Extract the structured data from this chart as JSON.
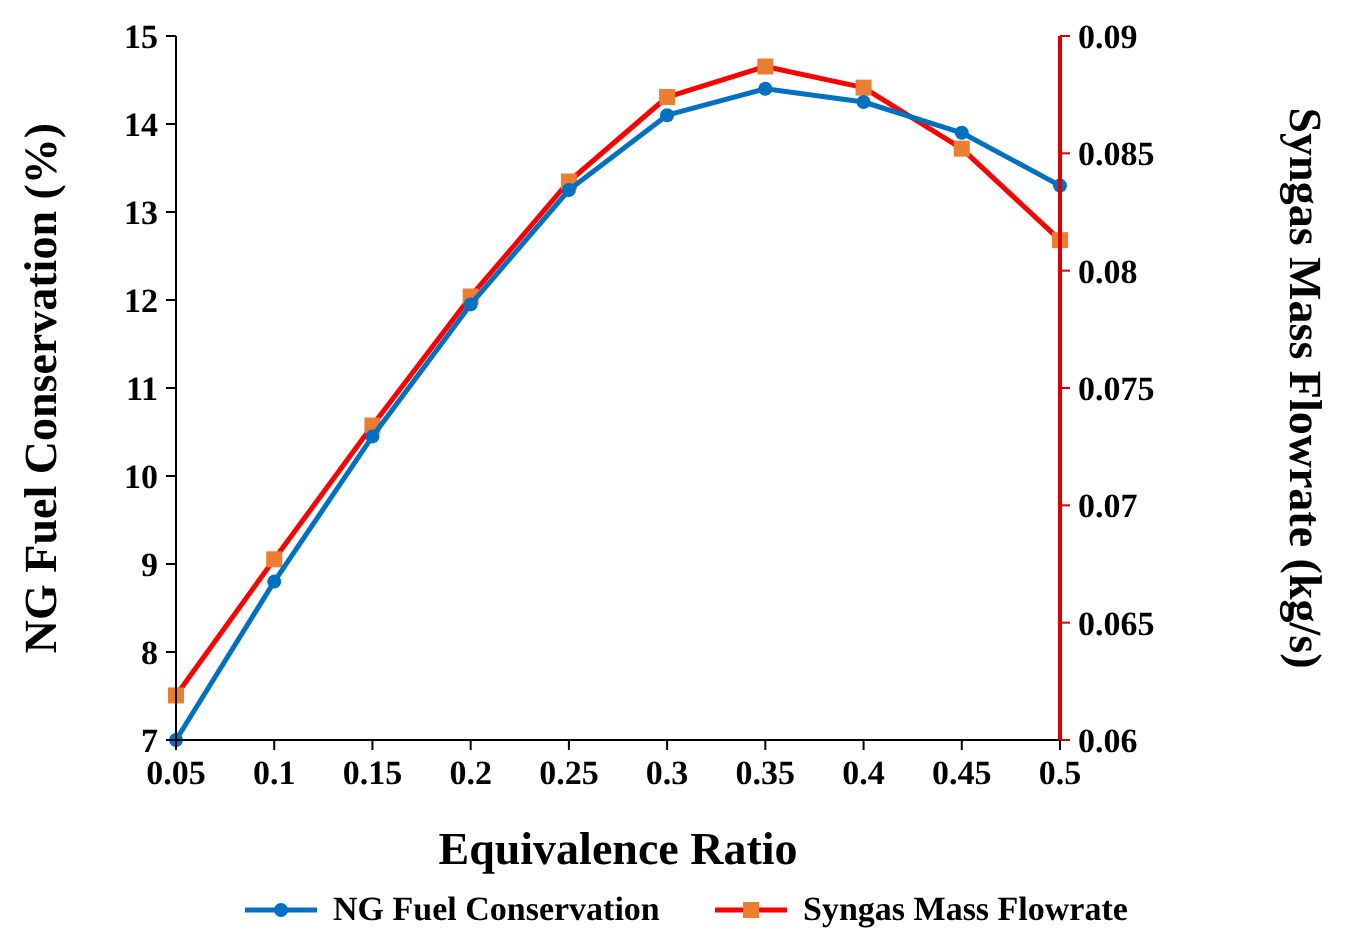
{
  "chart_data": {
    "type": "line",
    "xlabel": "Equivalence Ratio",
    "ylabel": "NG Fuel Conservation (%)",
    "y2label": "Syngas Mass Flowrate (kg/s)",
    "x": [
      0.05,
      0.1,
      0.15,
      0.2,
      0.25,
      0.3,
      0.35,
      0.4,
      0.45,
      0.5
    ],
    "xlim": [
      0.05,
      0.5
    ],
    "xticks": [
      0.05,
      0.1,
      0.15,
      0.2,
      0.25,
      0.3,
      0.35,
      0.4,
      0.45,
      0.5
    ],
    "ylim": [
      7,
      15
    ],
    "yticks": [
      7,
      8,
      9,
      10,
      11,
      12,
      13,
      14,
      15
    ],
    "y2lim": [
      0.06,
      0.09
    ],
    "y2ticks": [
      0.06,
      0.065,
      0.07,
      0.075,
      0.08,
      0.085,
      0.09
    ],
    "series": [
      {
        "name": "NG Fuel Conservation",
        "color": "#0070c0",
        "marker": "circle",
        "values": [
          7.0,
          8.8,
          10.45,
          11.95,
          13.25,
          14.1,
          14.4,
          14.25,
          13.9,
          13.3
        ]
      },
      {
        "name": "Syngas Mass Flowrate",
        "color": "#ff0000",
        "colors": [
          "#ed7d31",
          "#ed7d31",
          "#ed7d31",
          "#ed7d31",
          "#ed7d31",
          "#ed7d31",
          "#ed7d31",
          "#ed7d31",
          "#ed7d31",
          "#ed7d31"
        ],
        "marker": "square",
        "axis": "y2",
        "values": [
          0.0619,
          0.0677,
          0.0734,
          0.0789,
          0.0838,
          0.0874,
          0.0887,
          0.0878,
          0.0852,
          0.0813
        ]
      }
    ],
    "grid": false,
    "legend": "bottom",
    "line_style": "solid"
  }
}
